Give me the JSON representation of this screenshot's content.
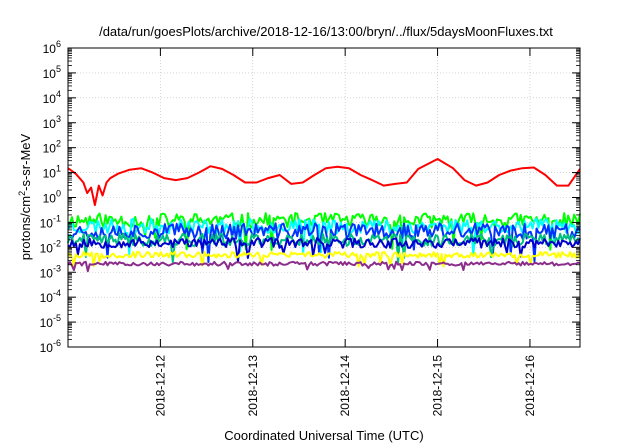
{
  "chart_data": {
    "type": "line",
    "title": "/data/run/goesPlots/archive/2018-12-16/13:00/bryn/../flux/5daysMoonFluxes.txt",
    "xlabel": "Coordinated Universal Time (UTC)",
    "ylabel": {
      "pre": "protons/cm",
      "sup": "2",
      "post": "-s-sr-MeV"
    },
    "yscale": "log",
    "ylim": [
      1e-06,
      1000000.0
    ],
    "xlim": [
      "2018-12-11T00:00",
      "2018-12-16T13:00"
    ],
    "grid": true,
    "x_ticks": [
      {
        "value": "2018-12-12T00:00",
        "label": "2018-12-12"
      },
      {
        "value": "2018-12-13T00:00",
        "label": "2018-12-13"
      },
      {
        "value": "2018-12-14T00:00",
        "label": "2018-12-14"
      },
      {
        "value": "2018-12-15T00:00",
        "label": "2018-12-15"
      },
      {
        "value": "2018-12-16T00:00",
        "label": "2018-12-16"
      }
    ],
    "y_ticks": [
      {
        "value": 1000000.0,
        "base": "10",
        "exp": "6"
      },
      {
        "value": 100000.0,
        "base": "10",
        "exp": "5"
      },
      {
        "value": 10000.0,
        "base": "10",
        "exp": "4"
      },
      {
        "value": 1000.0,
        "base": "10",
        "exp": "3"
      },
      {
        "value": 100.0,
        "base": "10",
        "exp": "2"
      },
      {
        "value": 10.0,
        "base": "10",
        "exp": "1"
      },
      {
        "value": 1.0,
        "base": "10",
        "exp": "0"
      },
      {
        "value": 0.1,
        "base": "10",
        "exp": "-1"
      },
      {
        "value": 0.01,
        "base": "10",
        "exp": "-2"
      },
      {
        "value": 0.001,
        "base": "10",
        "exp": "-3"
      },
      {
        "value": 0.0001,
        "base": "10",
        "exp": "-4"
      },
      {
        "value": 1e-05,
        "base": "10",
        "exp": "-5"
      },
      {
        "value": 1e-06,
        "base": "10",
        "exp": "-6"
      }
    ],
    "series": [
      {
        "color": "#ff0000",
        "x": [
          "2018-12-11T00:00",
          "2018-12-11T02:00",
          "2018-12-11T04:00",
          "2018-12-11T05:00",
          "2018-12-11T06:00",
          "2018-12-11T07:00",
          "2018-12-11T08:00",
          "2018-12-11T09:00",
          "2018-12-11T10:00",
          "2018-12-11T11:00",
          "2018-12-11T13:00",
          "2018-12-11T16:00",
          "2018-12-11T19:00",
          "2018-12-11T22:00",
          "2018-12-12T01:00",
          "2018-12-12T04:00",
          "2018-12-12T07:00",
          "2018-12-12T10:00",
          "2018-12-12T13:00",
          "2018-12-12T16:00",
          "2018-12-12T19:00",
          "2018-12-12T22:00",
          "2018-12-13T01:00",
          "2018-12-13T04:00",
          "2018-12-13T07:00",
          "2018-12-13T10:00",
          "2018-12-13T13:00",
          "2018-12-13T16:00",
          "2018-12-13T19:00",
          "2018-12-13T22:00",
          "2018-12-14T01:00",
          "2018-12-14T04:00",
          "2018-12-14T07:00",
          "2018-12-14T10:00",
          "2018-12-14T13:00",
          "2018-12-14T16:00",
          "2018-12-14T19:00",
          "2018-12-15T00:00",
          "2018-12-15T04:00",
          "2018-12-15T07:00",
          "2018-12-15T10:00",
          "2018-12-15T13:00",
          "2018-12-15T16:00",
          "2018-12-15T19:00",
          "2018-12-15T22:00",
          "2018-12-16T01:00",
          "2018-12-16T04:00",
          "2018-12-16T07:00",
          "2018-12-16T10:00",
          "2018-12-16T13:00"
        ],
        "y": [
          15,
          9,
          4,
          1.5,
          2.5,
          0.5,
          3,
          1.2,
          4,
          6,
          9,
          13,
          15,
          10,
          6,
          5,
          6,
          10,
          18,
          14,
          8,
          4,
          4,
          6,
          8,
          3.5,
          4,
          8,
          15,
          17,
          15,
          8,
          5,
          3,
          3.5,
          4,
          14,
          35,
          15,
          5,
          3,
          4,
          8,
          12,
          15,
          16,
          8,
          3,
          3,
          14
        ]
      },
      {
        "color": "#00ff00",
        "x": [
          "2018-12-11T00:00",
          "2018-12-16T13:00"
        ],
        "y": [
          0.12,
          0.12
        ],
        "noise": 0.3,
        "seed": 11
      },
      {
        "color": "#00ffff",
        "x": [
          "2018-12-11T00:00",
          "2018-12-16T13:00"
        ],
        "y": [
          0.07,
          0.07
        ],
        "noise": 0.3,
        "seed": 23
      },
      {
        "color": "#0033ff",
        "x": [
          "2018-12-11T00:00",
          "2018-12-16T13:00"
        ],
        "y": [
          0.045,
          0.045
        ],
        "noise": 0.32,
        "seed": 37
      },
      {
        "color": "#00c080",
        "x": [
          "2018-12-11T00:00",
          "2018-12-16T13:00"
        ],
        "y": [
          0.02,
          0.02
        ],
        "noise": 0.25,
        "seed": 41
      },
      {
        "color": "#0000cc",
        "x": [
          "2018-12-11T00:00",
          "2018-12-16T13:00"
        ],
        "y": [
          0.015,
          0.015
        ],
        "noise": 0.2,
        "seed": 53
      },
      {
        "color": "#ffff00",
        "x": [
          "2018-12-11T00:00",
          "2018-12-16T13:00"
        ],
        "y": [
          0.005,
          0.005
        ],
        "noise": 0.12,
        "seed": 67
      },
      {
        "color": "#8b2d8b",
        "x": [
          "2018-12-11T00:00",
          "2018-12-16T13:00"
        ],
        "y": [
          0.0022,
          0.0022
        ],
        "noise": 0.08,
        "seed": 79
      }
    ]
  }
}
